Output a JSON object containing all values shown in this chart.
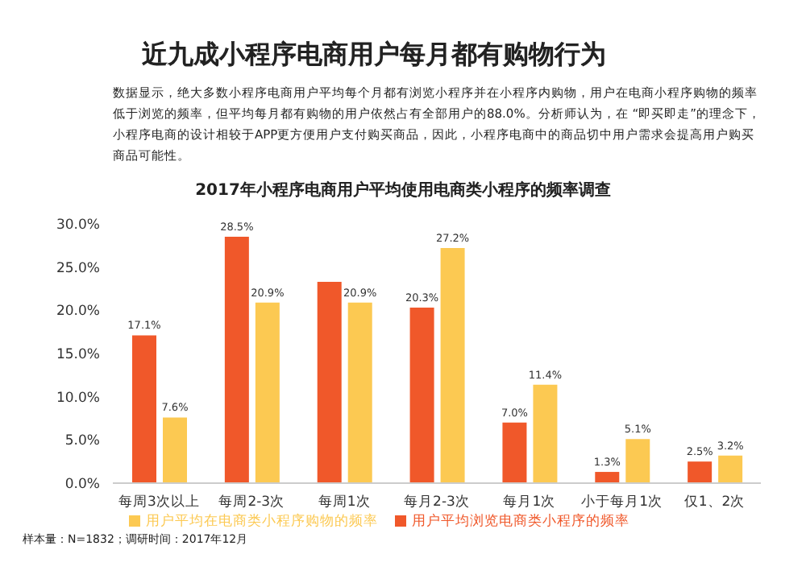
{
  "chart_data": {
    "type": "bar",
    "title": "近九成小程序电商用户每月都有购物行为",
    "subtitle": "2017年小程序电商用户平均使用电商类小程序的频率调查",
    "annotations": [
      "数据显示，绝大多数小程序电商用户平均每个月都有浏览小程序并在小程序内购物，用户在电商小程序购物的频率低于浏览的频率，但平均每月都有购物的用户依然占有全部用户的88.0%。分析师认为，在 “即买即走”的理念下，小程序电商的设计相较于APP更方便用户支付购买商品，因此，小程序电商中的商品切中用户需求会提高用户购买商品可能性。",
      "样本量：N=1832；调研时间：2017年12月"
    ],
    "categories": [
      "每周3次以上",
      "每周2-3次",
      "每周1次",
      "每月2-3次",
      "每月1次",
      "小于每月1次",
      "仅1、2次"
    ],
    "series": [
      {
        "name": "用户平均浏览电商类小程序的频率",
        "color": "#f0582a",
        "values": [
          17.1,
          28.5,
          23.3,
          20.3,
          7.0,
          1.3,
          2.5
        ],
        "value_labels": [
          "17.1%",
          "28.5%",
          null,
          "20.3%",
          "7.0%",
          "1.3%",
          "2.5%"
        ]
      },
      {
        "name": "用户平均在电商类小程序购物的频率",
        "color": "#fcc952",
        "values": [
          7.6,
          20.9,
          20.9,
          27.2,
          11.4,
          5.1,
          3.2
        ],
        "value_labels": [
          "7.6%",
          "20.9%",
          "20.9%",
          "27.2%",
          "11.4%",
          "5.1%",
          "3.2%"
        ]
      }
    ],
    "ylim": [
      0,
      30
    ],
    "yticks": [
      {
        "value": 0,
        "label": "0.0%"
      },
      {
        "value": 5,
        "label": "5.0%"
      },
      {
        "value": 10,
        "label": "10.0%"
      },
      {
        "value": 15,
        "label": "15.0%"
      },
      {
        "value": 20,
        "label": "20.0%"
      },
      {
        "value": 25,
        "label": "25.0%"
      },
      {
        "value": 30,
        "label": "30.0%"
      }
    ],
    "legend": "bottom",
    "grid": false
  }
}
